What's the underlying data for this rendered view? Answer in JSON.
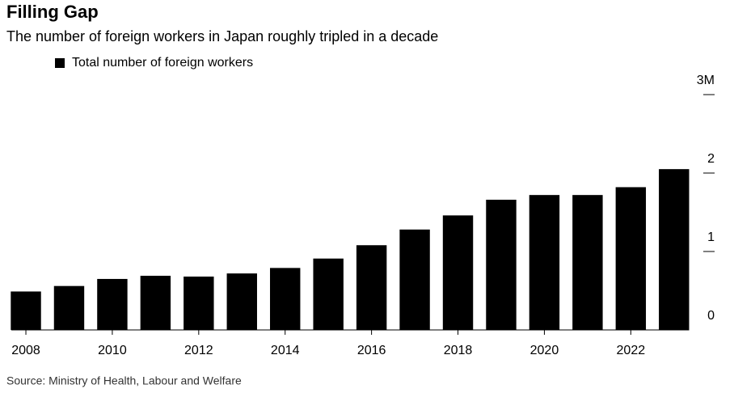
{
  "chart_data": {
    "type": "bar",
    "title": "Filling Gap",
    "subtitle": "The number of foreign workers in Japan roughly tripled in a decade",
    "source": "Source: Ministry of Health, Labour and Welfare",
    "categories": [
      "2008",
      null,
      "2010",
      null,
      "2012",
      null,
      "2014",
      null,
      "2016",
      null,
      "2018",
      null,
      "2020",
      null,
      "2022",
      null
    ],
    "series": [
      {
        "name": "Total number of foreign workers",
        "color": "#000000",
        "values": [
          0.49,
          0.56,
          0.65,
          0.69,
          0.68,
          0.72,
          0.79,
          0.91,
          1.08,
          1.28,
          1.46,
          1.66,
          1.72,
          1.72,
          1.82,
          2.05
        ]
      }
    ],
    "ylim": [
      0,
      3
    ],
    "yticks": [
      0,
      1,
      2,
      {
        "value": 3,
        "label": "3M"
      }
    ],
    "grid": false
  }
}
